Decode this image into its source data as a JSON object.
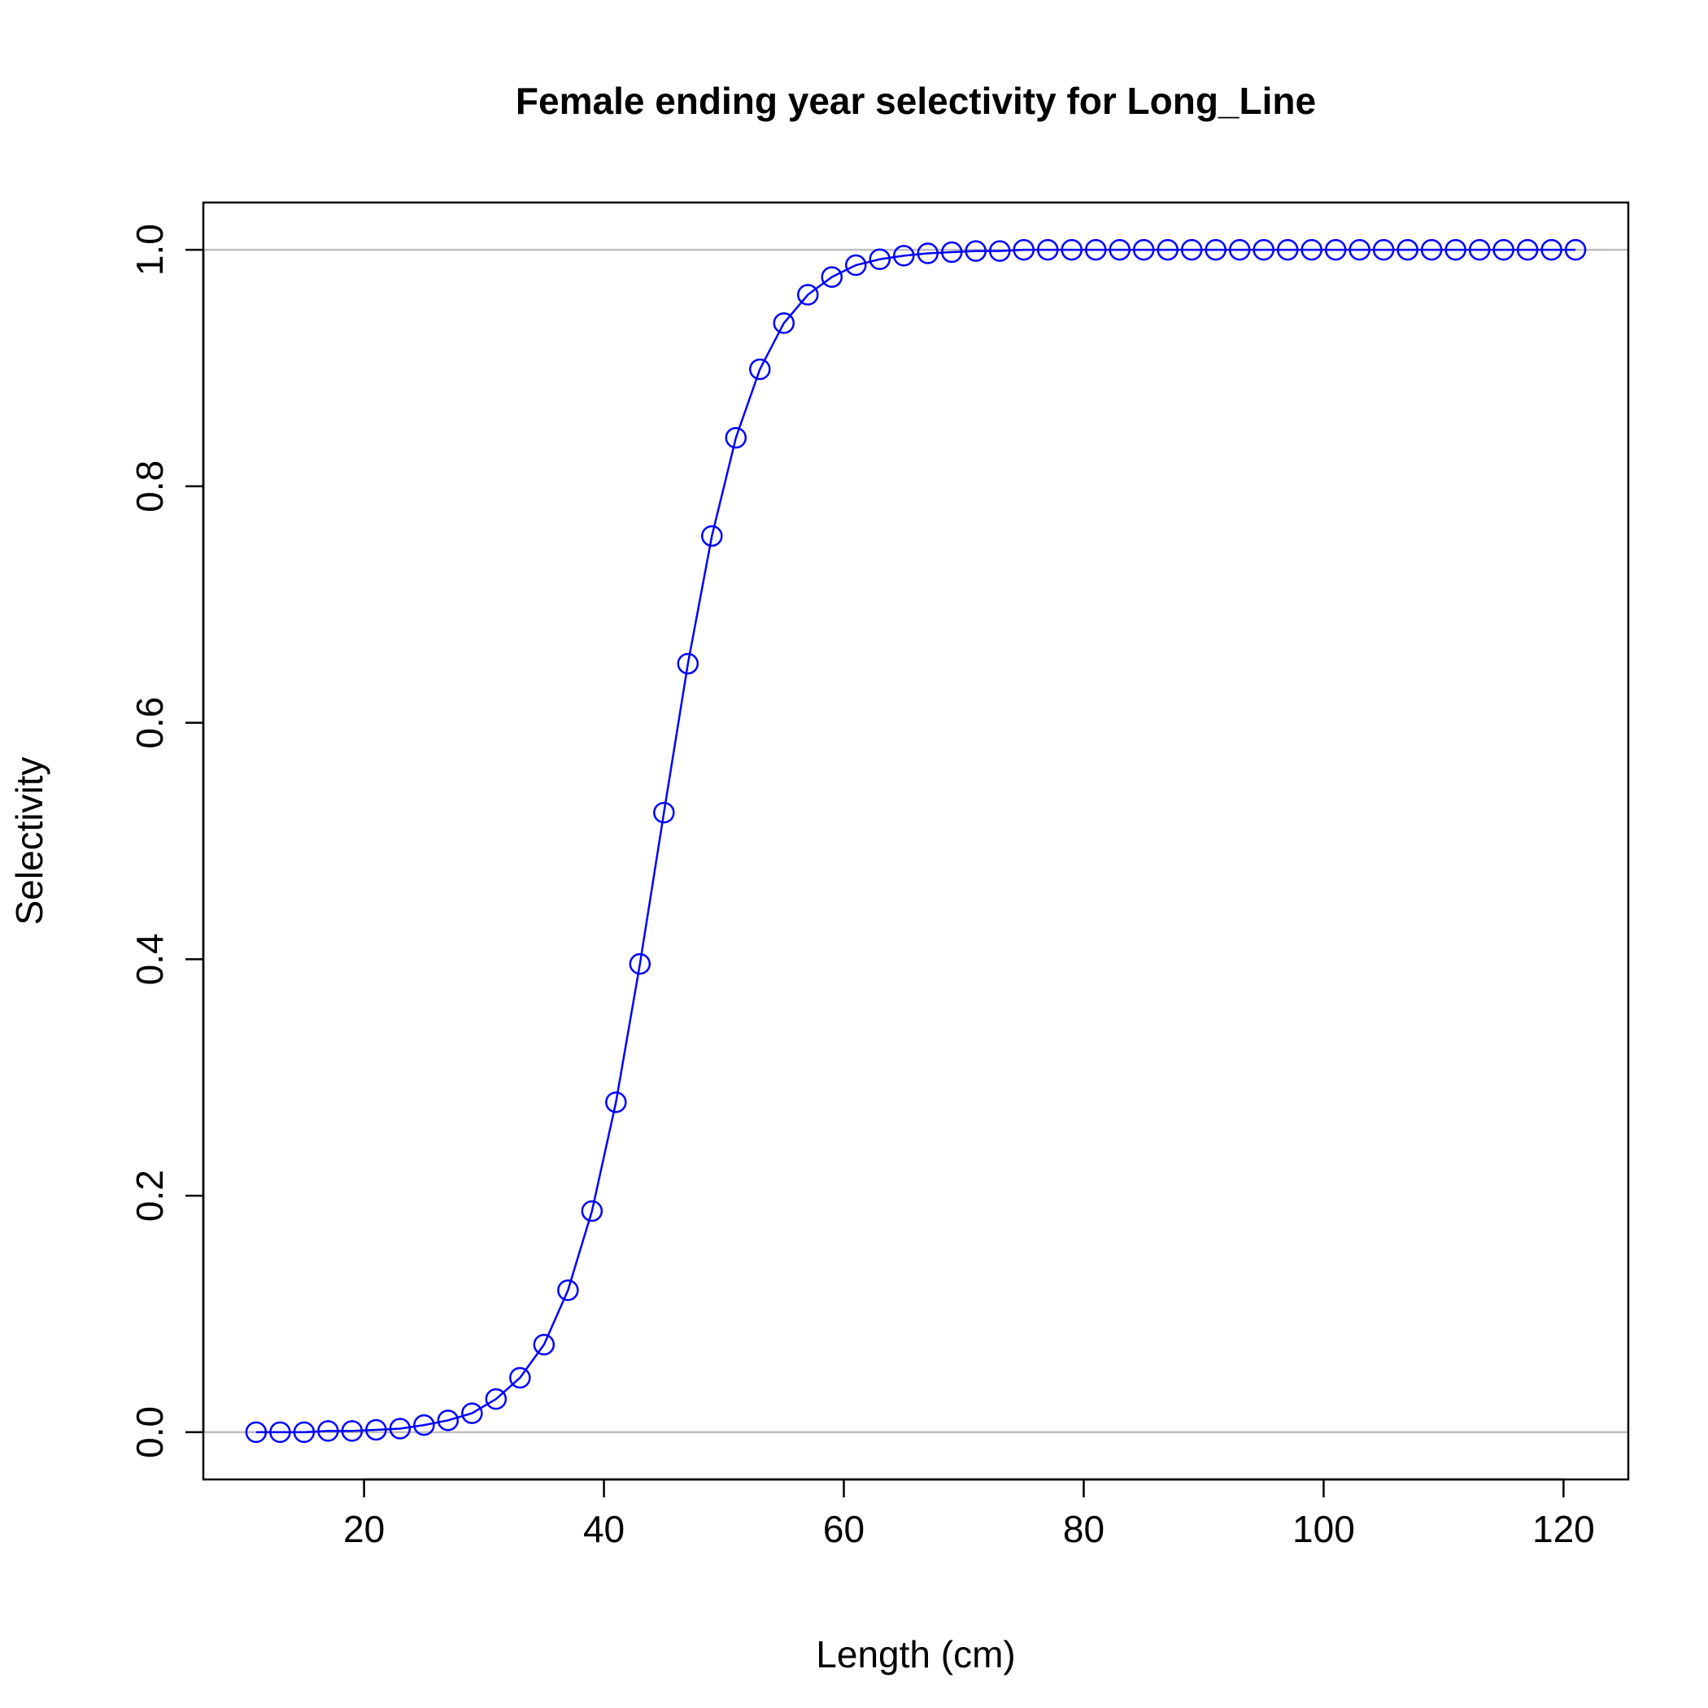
{
  "chart_data": {
    "type": "line",
    "title": "Female ending year selectivity for Long_Line",
    "xlabel": "Length (cm)",
    "ylabel": "Selectivity",
    "xlim": [
      6.6,
      125.4
    ],
    "ylim": [
      -0.04,
      1.04
    ],
    "x_ticks": [
      20,
      40,
      60,
      80,
      100,
      120
    ],
    "x_tick_labels": [
      "20",
      "40",
      "60",
      "80",
      "100",
      "120"
    ],
    "y_ticks": [
      0.0,
      0.2,
      0.4,
      0.6,
      0.8,
      1.0
    ],
    "y_tick_labels": [
      "0.0",
      "0.2",
      "0.4",
      "0.6",
      "0.8",
      "1.0"
    ],
    "reference_lines_y": [
      0.0,
      1.0
    ],
    "grid": false,
    "legend": "none",
    "series": [
      {
        "color": "#0000ff",
        "marker": "open-circle",
        "x": [
          11,
          13,
          15,
          17,
          19,
          21,
          23,
          25,
          27,
          29,
          31,
          33,
          35,
          37,
          39,
          41,
          43,
          45,
          47,
          49,
          51,
          53,
          55,
          57,
          59,
          61,
          63,
          65,
          67,
          69,
          71,
          73,
          75,
          77,
          79,
          81,
          83,
          85,
          87,
          89,
          91,
          93,
          95,
          97,
          99,
          101,
          103,
          105,
          107,
          109,
          111,
          113,
          115,
          117,
          119,
          121
        ],
        "y": [
          0.0,
          0.0,
          0.0,
          0.001,
          0.001,
          0.002,
          0.003,
          0.006,
          0.01,
          0.016,
          0.028,
          0.046,
          0.074,
          0.12,
          0.187,
          0.279,
          0.396,
          0.524,
          0.65,
          0.758,
          0.841,
          0.899,
          0.938,
          0.962,
          0.977,
          0.987,
          0.992,
          0.995,
          0.997,
          0.998,
          0.999,
          0.999,
          1.0,
          1.0,
          1.0,
          1.0,
          1.0,
          1.0,
          1.0,
          1.0,
          1.0,
          1.0,
          1.0,
          1.0,
          1.0,
          1.0,
          1.0,
          1.0,
          1.0,
          1.0,
          1.0,
          1.0,
          1.0,
          1.0,
          1.0,
          1.0
        ]
      }
    ]
  }
}
